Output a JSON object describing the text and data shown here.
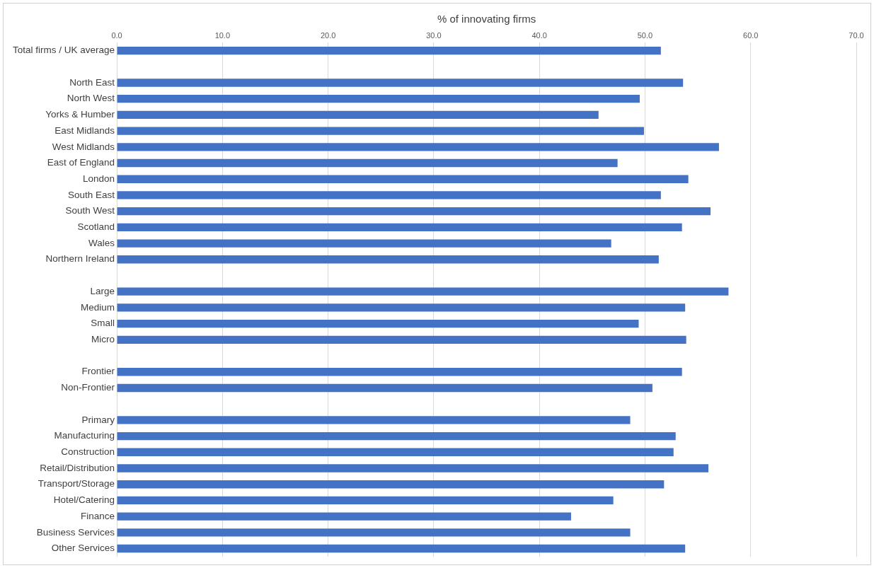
{
  "chart_data": {
    "type": "bar",
    "orientation": "horizontal",
    "xlabel": "% of innovating firms",
    "categories": [
      "Total firms / UK average",
      null,
      "North East",
      "North West",
      "Yorks & Humber",
      "East Midlands",
      "West Midlands",
      "East of England",
      "London",
      "South East",
      "South West",
      "Scotland",
      "Wales",
      "Northern Ireland",
      null,
      "Large",
      "Medium",
      "Small",
      "Micro",
      null,
      "Frontier",
      "Non-Frontier",
      null,
      "Primary",
      "Manufacturing",
      "Construction",
      "Retail/Distribution",
      "Transport/Storage",
      "Hotel/Catering",
      "Finance",
      "Business Services",
      "Other Services"
    ],
    "values": [
      51.5,
      null,
      53.6,
      49.5,
      45.6,
      49.9,
      57.0,
      47.4,
      54.1,
      51.5,
      56.2,
      53.5,
      46.8,
      51.3,
      null,
      57.9,
      53.8,
      49.4,
      53.9,
      null,
      53.5,
      50.7,
      null,
      48.6,
      52.9,
      52.7,
      56.0,
      51.8,
      47.0,
      43.0,
      48.6,
      53.8
    ],
    "color": "#4472c4",
    "xlim": [
      0,
      70
    ],
    "xticks": [
      {
        "value": 0,
        "label": "0.0"
      },
      {
        "value": 10,
        "label": "10.0"
      },
      {
        "value": 20,
        "label": "20.0"
      },
      {
        "value": 30,
        "label": "30.0"
      },
      {
        "value": 40,
        "label": "40.0"
      },
      {
        "value": 50,
        "label": "50.0"
      },
      {
        "value": 60,
        "label": "60.0"
      },
      {
        "value": 70,
        "label": "70.0"
      }
    ],
    "grid": "x",
    "legend": false
  }
}
